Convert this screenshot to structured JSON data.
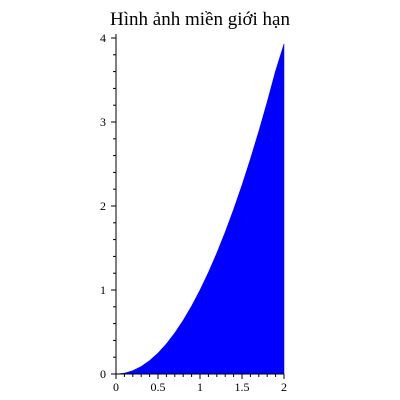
{
  "chart_data": {
    "type": "area",
    "title": "Hình ảnh miền giới hạn",
    "xlabel": "",
    "ylabel": "",
    "xlim": [
      0,
      2
    ],
    "ylim": [
      0,
      4
    ],
    "x_ticks": [
      {
        "value": 0,
        "label": "0"
      },
      {
        "value": 0.5,
        "label": "0.5"
      },
      {
        "value": 1,
        "label": "1"
      },
      {
        "value": 1.5,
        "label": "1.5"
      },
      {
        "value": 2,
        "label": "2"
      }
    ],
    "y_ticks": [
      {
        "value": 0,
        "label": "0"
      },
      {
        "value": 1,
        "label": "1"
      },
      {
        "value": 2,
        "label": "2"
      },
      {
        "value": 3,
        "label": "3"
      },
      {
        "value": 4,
        "label": "4"
      }
    ],
    "series": [
      {
        "fill_color": "#0000ff",
        "x": [
          0,
          0.1,
          0.2,
          0.3,
          0.4,
          0.5,
          0.6,
          0.7,
          0.8,
          0.9,
          1.0,
          1.1,
          1.2,
          1.3,
          1.4,
          1.5,
          1.6,
          1.7,
          1.8,
          1.9,
          2.0
        ],
        "y": [
          0,
          0.01,
          0.04,
          0.09,
          0.16,
          0.25,
          0.36,
          0.49,
          0.64,
          0.81,
          1.0,
          1.21,
          1.44,
          1.69,
          1.96,
          2.25,
          2.56,
          2.89,
          3.24,
          3.61,
          3.93
        ]
      }
    ],
    "grid": false,
    "legend": "none"
  }
}
